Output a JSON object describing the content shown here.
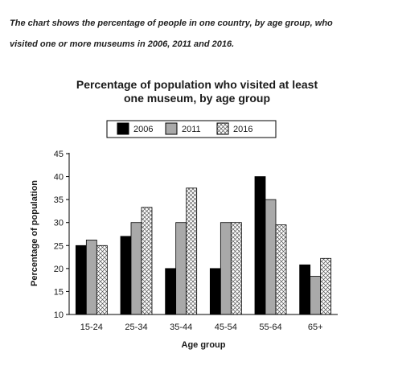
{
  "intro": {
    "line1": "The chart shows the percentage of people in one country, by age group, who",
    "line2": "visited one or more museums in 2006, 2011 and 2016."
  },
  "chart_data": {
    "type": "bar",
    "title_line1": "Percentage of population who visited at least",
    "title_line2": "one museum, by age group",
    "xlabel": "Age group",
    "ylabel": "Percentage of population",
    "categories": [
      "15-24",
      "25-34",
      "35-44",
      "45-54",
      "55-64",
      "65+"
    ],
    "ylim": [
      10,
      45
    ],
    "yticks": [
      10,
      15,
      20,
      25,
      30,
      35,
      40,
      45
    ],
    "legend_position": "top-center",
    "series": [
      {
        "name": "2006",
        "pattern": "solid-black",
        "values": [
          25,
          27,
          20,
          20,
          40,
          20.8
        ]
      },
      {
        "name": "2011",
        "pattern": "solid-gray",
        "values": [
          26.2,
          30,
          30,
          30,
          35,
          18.3
        ]
      },
      {
        "name": "2016",
        "pattern": "crosshatch",
        "values": [
          25,
          33.3,
          37.5,
          30,
          29.5,
          22.2
        ]
      }
    ],
    "colors": {
      "2006": "#000000",
      "2011": "#a9a9a9",
      "2016": "#ffffff"
    }
  }
}
